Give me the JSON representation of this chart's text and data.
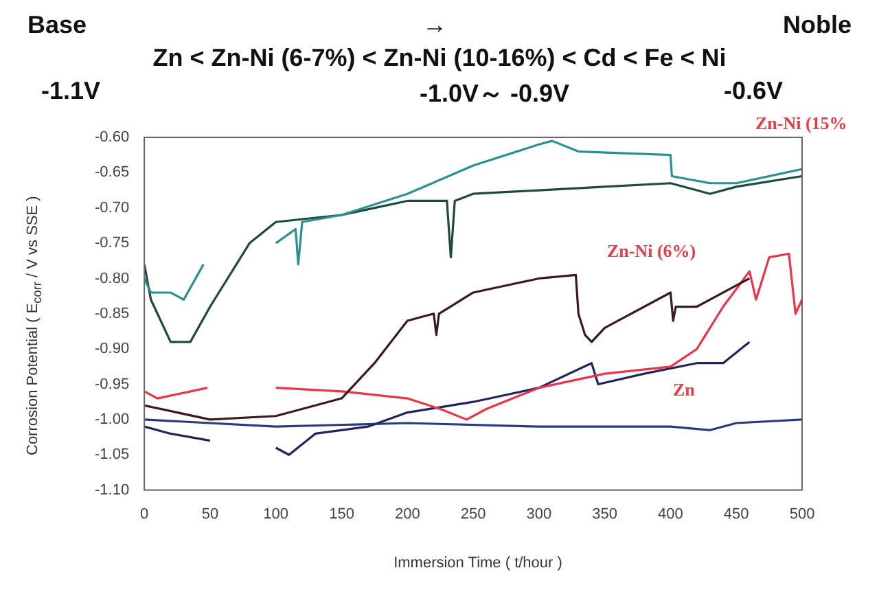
{
  "chart_data": {
    "type": "line",
    "xlabel": "Immersion Time ( t/hour )",
    "ylabel": "Corrosion Potential ( E$_{corr}$ / V vs SSE )",
    "annotations": [
      "Base",
      "→",
      "Noble",
      "Zn < Zn-Ni (6-7%) < Zn-Ni (10-16%) < Cd < Fe < Ni",
      "-1.1V",
      "-1.0V～ -0.9V",
      "-0.6V",
      "Zn-Ni (15%",
      "Zn-Ni (6%)",
      "Zn"
    ],
    "xlim": [
      0,
      500
    ],
    "xticks": [
      0,
      50,
      100,
      150,
      200,
      250,
      300,
      350,
      400,
      450,
      500
    ],
    "ylim": [
      -1.1,
      -0.6
    ],
    "yticks": [
      {
        "value": -0.6,
        "label": "-0.60"
      },
      -0.65,
      {
        "value": -0.7,
        "label": "-0.70"
      },
      -0.75,
      {
        "value": -0.8,
        "label": "-0.80"
      },
      -0.85,
      {
        "value": -0.9,
        "label": "-0.90"
      },
      -0.95,
      {
        "value": -1.0,
        "label": "-1.00"
      },
      -1.05,
      {
        "value": -1.1,
        "label": "-1.10"
      }
    ],
    "grid": false,
    "legend": false,
    "marker": "none",
    "line_style": "solid",
    "series": [
      {
        "color": "#2a9090",
        "x": [
          0,
          5,
          20,
          30,
          45,
          46,
          100,
          115,
          117,
          120,
          150,
          200,
          250,
          300,
          310,
          330,
          400,
          401,
          430,
          450,
          500
        ],
        "values": [
          -0.8,
          -0.82,
          -0.82,
          -0.83,
          -0.78,
          null,
          -0.75,
          -0.73,
          -0.78,
          -0.72,
          -0.71,
          -0.68,
          -0.64,
          -0.61,
          -0.605,
          -0.62,
          -0.625,
          -0.655,
          -0.665,
          -0.665,
          -0.645
        ]
      },
      {
        "color": "#1f4a3a",
        "x": [
          0,
          5,
          20,
          35,
          50,
          80,
          100,
          150,
          200,
          230,
          233,
          236,
          250,
          300,
          350,
          400,
          430,
          450,
          500
        ],
        "values": [
          -0.78,
          -0.83,
          -0.89,
          -0.89,
          -0.84,
          -0.75,
          -0.72,
          -0.71,
          -0.69,
          -0.69,
          -0.77,
          -0.69,
          -0.68,
          -0.675,
          -0.67,
          -0.665,
          -0.68,
          -0.67,
          -0.655
        ]
      },
      {
        "color": "#3a1a1a",
        "x": [
          0,
          50,
          100,
          150,
          175,
          200,
          220,
          222,
          224,
          250,
          300,
          328,
          330,
          335,
          340,
          350,
          400,
          402,
          404,
          420,
          450,
          460
        ],
        "values": [
          -0.98,
          -1.0,
          -0.995,
          -0.97,
          -0.92,
          -0.86,
          -0.85,
          -0.88,
          -0.85,
          -0.82,
          -0.8,
          -0.795,
          -0.85,
          -0.88,
          -0.89,
          -0.87,
          -0.82,
          -0.86,
          -0.84,
          -0.84,
          -0.81,
          -0.8
        ]
      },
      {
        "color": "#e8354a",
        "x": [
          0,
          10,
          48,
          49,
          100,
          150,
          200,
          225,
          245,
          260,
          300,
          350,
          400,
          420,
          440,
          460,
          465,
          475,
          490,
          495,
          500
        ],
        "values": [
          -0.96,
          -0.97,
          -0.955,
          null,
          -0.955,
          -0.96,
          -0.97,
          -0.985,
          -1.0,
          -0.985,
          -0.955,
          -0.935,
          -0.925,
          -0.9,
          -0.84,
          -0.79,
          -0.83,
          -0.77,
          -0.765,
          -0.85,
          -0.83
        ]
      },
      {
        "color": "#23245a",
        "x": [
          0,
          20,
          50,
          51,
          100,
          110,
          130,
          170,
          200,
          250,
          300,
          340,
          345,
          380,
          420,
          440,
          460
        ],
        "values": [
          -1.01,
          -1.02,
          -1.03,
          null,
          -1.04,
          -1.05,
          -1.02,
          -1.01,
          -0.99,
          -0.975,
          -0.955,
          -0.92,
          -0.95,
          -0.935,
          -0.92,
          -0.92,
          -0.89
        ]
      },
      {
        "color": "#2a3a80",
        "x": [
          0,
          100,
          200,
          300,
          400,
          430,
          450,
          500
        ],
        "values": [
          -1.0,
          -1.01,
          -1.005,
          -1.01,
          -1.01,
          -1.015,
          -1.005,
          -1.0
        ]
      }
    ]
  }
}
